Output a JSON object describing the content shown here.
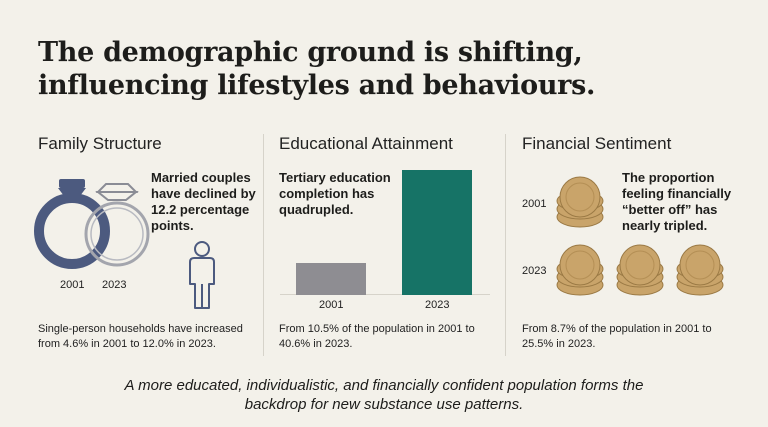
{
  "title": "The demographic ground is shifting, influencing lifestyles and behaviours.",
  "family": {
    "heading": "Family Structure",
    "callout": "Married couples have declined by 12.2 percentage points.",
    "label_2001": "2001",
    "label_2023": "2023",
    "caption": "Single-person households have increased from 4.6% in 2001 to 12.0% in 2023.",
    "icons": [
      "ring-icon",
      "ring-icon",
      "person-icon"
    ]
  },
  "education": {
    "heading": "Educational Attainment",
    "callout": "Tertiary education completion has quadrupled.",
    "caption": "From 10.5% of the population in 2001 to 40.6% in 2023.",
    "chart_data": {
      "type": "bar",
      "categories": [
        "2001",
        "2023"
      ],
      "values": [
        10.5,
        40.6
      ],
      "colors": [
        "#8e8d92",
        "#167366"
      ],
      "ylim": [
        0,
        40.6
      ]
    }
  },
  "finance": {
    "heading": "Financial Sentiment",
    "callout": "The proportion feeling financially “better off” has nearly tripled.",
    "label_2001": "2001",
    "label_2023": "2023",
    "caption": "From 8.7% of the population in 2001 to 25.5% in 2023.",
    "coins_2001": 1,
    "coins_2023": 3,
    "coin_color": "#c9a46a"
  },
  "footer": "A more educated, individualistic, and financially confident population forms the backdrop for new substance use patterns."
}
